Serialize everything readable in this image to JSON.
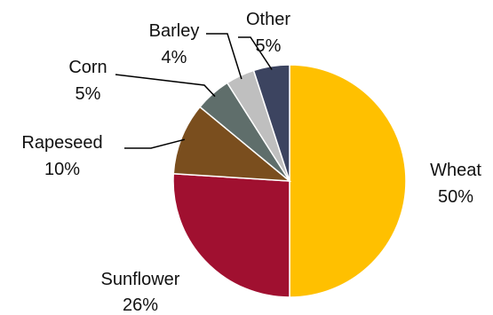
{
  "chart_data": {
    "type": "pie",
    "start_angle_deg": 0,
    "direction": "clockwise",
    "slices": [
      {
        "name": "Wheat",
        "value": 50,
        "label": "50%",
        "color": "#FFC000"
      },
      {
        "name": "Sunflower",
        "value": 26,
        "label": "26%",
        "color": "#A01030"
      },
      {
        "name": "Rapeseed",
        "value": 10,
        "label": "10%",
        "color": "#7A4E1E"
      },
      {
        "name": "Corn",
        "value": 5,
        "label": "5%",
        "color": "#5F6E6B"
      },
      {
        "name": "Barley",
        "value": 4,
        "label": "4%",
        "color": "#BFBFBF"
      },
      {
        "name": "Other",
        "value": 5,
        "label": "5%",
        "color": "#3C4460"
      }
    ],
    "legend": "none",
    "label_position": "outside"
  }
}
